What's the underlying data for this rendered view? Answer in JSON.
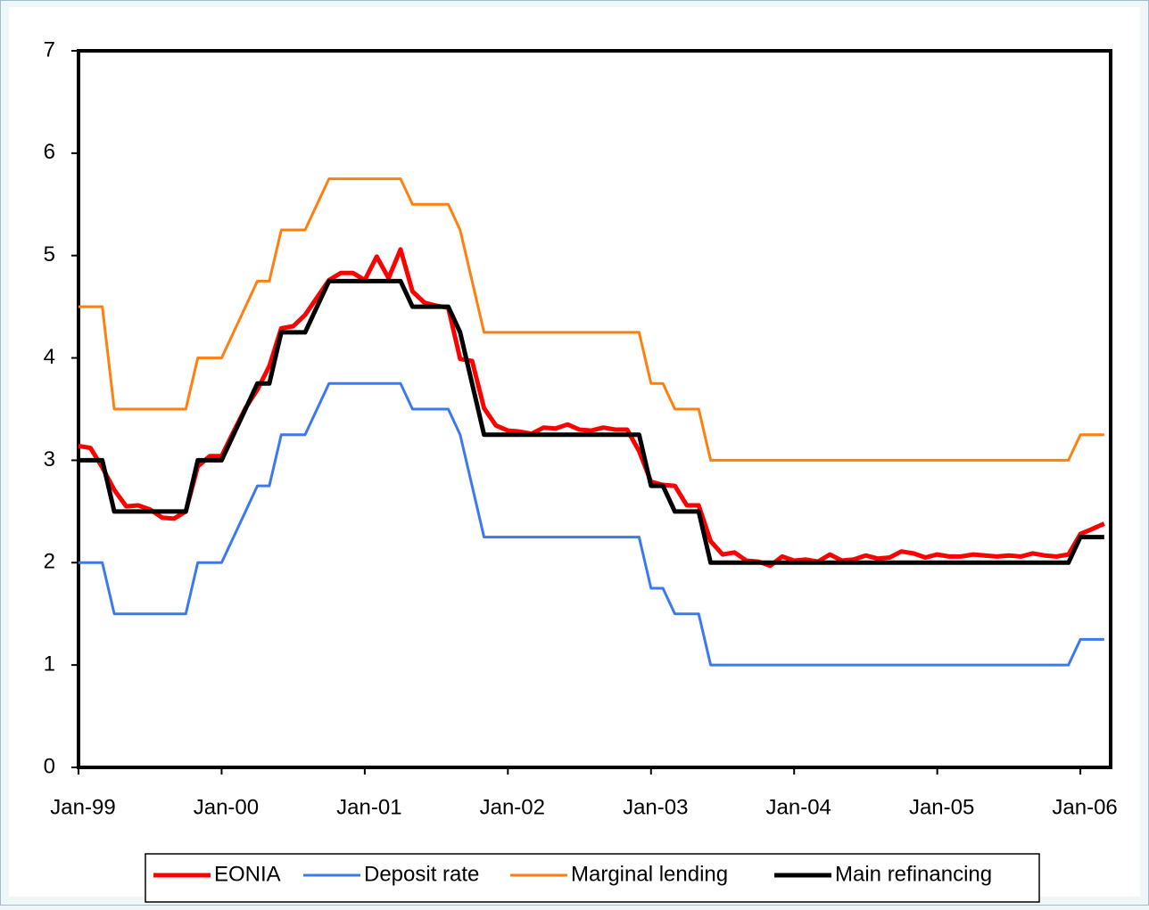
{
  "chart_data": {
    "type": "line",
    "categories": [
      "Jan-99",
      null,
      null,
      null,
      null,
      null,
      null,
      null,
      null,
      null,
      null,
      null,
      "Jan-00",
      null,
      null,
      null,
      null,
      null,
      null,
      null,
      null,
      null,
      null,
      null,
      "Jan-01",
      null,
      null,
      null,
      null,
      null,
      null,
      null,
      null,
      null,
      null,
      null,
      "Jan-02",
      null,
      null,
      null,
      null,
      null,
      null,
      null,
      null,
      null,
      null,
      null,
      "Jan-03",
      null,
      null,
      null,
      null,
      null,
      null,
      null,
      null,
      null,
      null,
      null,
      "Jan-04",
      null,
      null,
      null,
      null,
      null,
      null,
      null,
      null,
      null,
      null,
      null,
      "Jan-05",
      null,
      null,
      null,
      null,
      null,
      null,
      null,
      null,
      null,
      null,
      null,
      "Jan-06",
      null,
      null
    ],
    "series": [
      {
        "name": "EONIA",
        "color": "#ff0000",
        "values": [
          3.14,
          3.12,
          2.93,
          2.71,
          2.55,
          2.56,
          2.52,
          2.44,
          2.43,
          2.5,
          2.94,
          3.04,
          3.04,
          3.28,
          3.51,
          3.69,
          3.92,
          4.29,
          4.31,
          4.42,
          4.59,
          4.76,
          4.83,
          4.83,
          4.76,
          4.99,
          4.78,
          5.06,
          4.65,
          4.54,
          4.51,
          4.49,
          3.99,
          3.97,
          3.51,
          3.34,
          3.29,
          3.28,
          3.26,
          3.32,
          3.31,
          3.35,
          3.3,
          3.29,
          3.32,
          3.3,
          3.3,
          3.09,
          2.79,
          2.76,
          2.75,
          2.56,
          2.56,
          2.21,
          2.08,
          2.1,
          2.02,
          2.01,
          1.97,
          2.06,
          2.02,
          2.03,
          2.01,
          2.08,
          2.02,
          2.03,
          2.07,
          2.04,
          2.05,
          2.11,
          2.09,
          2.05,
          2.08,
          2.06,
          2.06,
          2.08,
          2.07,
          2.06,
          2.07,
          2.06,
          2.09,
          2.07,
          2.06,
          2.08,
          2.28,
          2.33,
          2.38
        ]
      },
      {
        "name": "Deposit rate",
        "color": "#3c78f0",
        "values": [
          2,
          2,
          2,
          1.5,
          1.5,
          1.5,
          1.5,
          1.5,
          1.5,
          1.5,
          2,
          2,
          2,
          2.25,
          2.5,
          2.75,
          2.75,
          3.25,
          3.25,
          3.25,
          3.5,
          3.75,
          3.75,
          3.75,
          3.75,
          3.75,
          3.75,
          3.75,
          3.5,
          3.5,
          3.5,
          3.5,
          3.25,
          2.75,
          2.25,
          2.25,
          2.25,
          2.25,
          2.25,
          2.25,
          2.25,
          2.25,
          2.25,
          2.25,
          2.25,
          2.25,
          2.25,
          2.25,
          1.75,
          1.75,
          1.5,
          1.5,
          1.5,
          1,
          1,
          1,
          1,
          1,
          1,
          1,
          1,
          1,
          1,
          1,
          1,
          1,
          1,
          1,
          1,
          1,
          1,
          1,
          1,
          1,
          1,
          1,
          1,
          1,
          1,
          1,
          1,
          1,
          1,
          1,
          1.25,
          1.25,
          1.25
        ]
      },
      {
        "name": "Marginal lending",
        "color": "#ff7f0f",
        "values": [
          4.5,
          4.5,
          4.5,
          3.5,
          3.5,
          3.5,
          3.5,
          3.5,
          3.5,
          3.5,
          4,
          4,
          4,
          4.25,
          4.5,
          4.75,
          4.75,
          5.25,
          5.25,
          5.25,
          5.5,
          5.75,
          5.75,
          5.75,
          5.75,
          5.75,
          5.75,
          5.75,
          5.5,
          5.5,
          5.5,
          5.5,
          5.25,
          4.75,
          4.25,
          4.25,
          4.25,
          4.25,
          4.25,
          4.25,
          4.25,
          4.25,
          4.25,
          4.25,
          4.25,
          4.25,
          4.25,
          4.25,
          3.75,
          3.75,
          3.5,
          3.5,
          3.5,
          3,
          3,
          3,
          3,
          3,
          3,
          3,
          3,
          3,
          3,
          3,
          3,
          3,
          3,
          3,
          3,
          3,
          3,
          3,
          3,
          3,
          3,
          3,
          3,
          3,
          3,
          3,
          3,
          3,
          3,
          3,
          3.25,
          3.25,
          3.25
        ]
      },
      {
        "name": "Main refinancing",
        "color": "#000000",
        "values": [
          3,
          3,
          3,
          2.5,
          2.5,
          2.5,
          2.5,
          2.5,
          2.5,
          2.5,
          3,
          3,
          3,
          3.25,
          3.5,
          3.75,
          3.75,
          4.25,
          4.25,
          4.25,
          4.5,
          4.75,
          4.75,
          4.75,
          4.75,
          4.75,
          4.75,
          4.75,
          4.5,
          4.5,
          4.5,
          4.5,
          4.25,
          3.75,
          3.25,
          3.25,
          3.25,
          3.25,
          3.25,
          3.25,
          3.25,
          3.25,
          3.25,
          3.25,
          3.25,
          3.25,
          3.25,
          3.25,
          2.75,
          2.75,
          2.5,
          2.5,
          2.5,
          2,
          2,
          2,
          2,
          2,
          2,
          2,
          2,
          2,
          2,
          2,
          2,
          2,
          2,
          2,
          2,
          2,
          2,
          2,
          2,
          2,
          2,
          2,
          2,
          2,
          2,
          2,
          2,
          2,
          2,
          2,
          2.25,
          2.25,
          2.25
        ]
      }
    ],
    "ylim": [
      0,
      7
    ],
    "yticks": [
      0,
      1,
      2,
      3,
      4,
      5,
      6,
      7
    ],
    "grid": false,
    "legend": "bottom"
  }
}
